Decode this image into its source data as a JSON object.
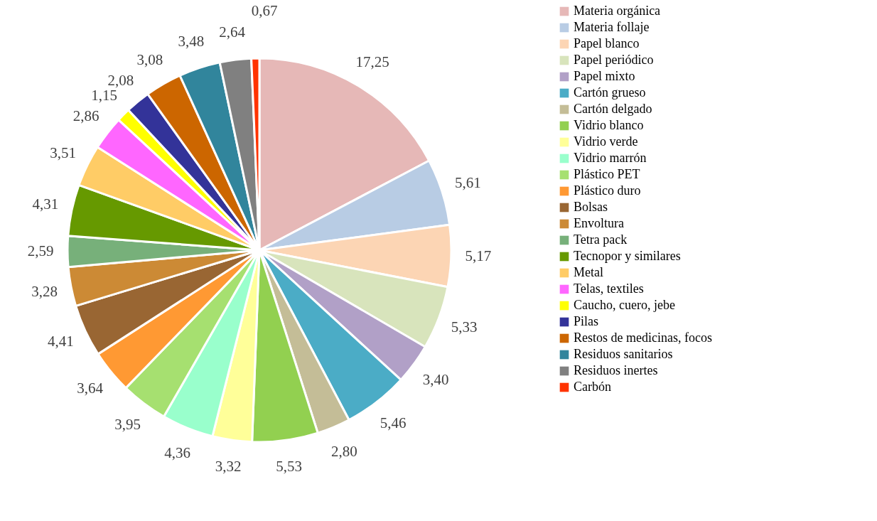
{
  "chart_data": {
    "type": "pie",
    "categories": [
      "Materia orgánica",
      "Materia follaje",
      "Papel blanco",
      "Papel periódico",
      "Papel mixto",
      "Cartón grueso",
      "Cartón delgado",
      "Vidrio blanco",
      "Vidrio verde",
      "Vidrio marrón",
      "Plástico PET",
      "Plástico duro",
      "Bolsas",
      "Envoltura",
      "Tetra pack",
      "Tecnopor y similares",
      "Metal",
      "Telas, textiles",
      "Caucho, cuero, jebe",
      "Pilas",
      "Restos de medicinas, focos",
      "Residuos sanitarios",
      "Residuos inertes",
      "Carbón"
    ],
    "values": [
      17.25,
      5.61,
      5.17,
      5.33,
      3.4,
      5.46,
      2.8,
      5.53,
      3.32,
      4.36,
      3.95,
      3.64,
      4.41,
      3.28,
      2.59,
      4.31,
      3.51,
      2.86,
      1.15,
      2.08,
      3.08,
      3.48,
      2.64,
      0.67
    ],
    "value_labels": [
      "17,25",
      "5,61",
      "5,17",
      "5,33",
      "3,40",
      "5,46",
      "2,80",
      "5,53",
      "3,32",
      "4,36",
      "3,95",
      "3,64",
      "4,41",
      "3,28",
      "2,59",
      "4,31",
      "3,51",
      "2,86",
      "1,15",
      "2,08",
      "3,08",
      "3,48",
      "2,64",
      "0,67"
    ],
    "colors": [
      "#e6b8b7",
      "#b8cce4",
      "#fcd5b4",
      "#d8e4bc",
      "#b1a0c7",
      "#4bacc6",
      "#c4bd97",
      "#92d050",
      "#ffff99",
      "#99ffcc",
      "#a6e070",
      "#ff9933",
      "#996633",
      "#cc8a35",
      "#77b07a",
      "#669900",
      "#ffcc66",
      "#ff66ff",
      "#ffff00",
      "#333399",
      "#cc6600",
      "#31859c",
      "#808080",
      "#ff3300"
    ],
    "legend": "right"
  }
}
